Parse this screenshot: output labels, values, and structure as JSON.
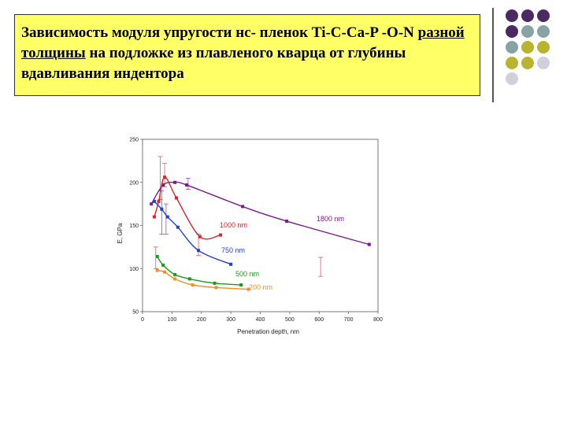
{
  "slide": {
    "title_part1": "Зависимость модуля упругости нс- пленок Ti-C-Ca-P -O-N ",
    "title_underlined": "разной толщины",
    "title_part2": " на подложке из плавленого кварца от глубины вдавливания индентора"
  },
  "decor_dots": [
    {
      "color": "#4b2a63"
    },
    {
      "color": "#4b2a63"
    },
    {
      "color": "#4b2a63"
    },
    {
      "color": "#4b2a63"
    },
    {
      "color": "#87a3a6"
    },
    {
      "color": "#87a3a6"
    },
    {
      "color": "#87a3a6"
    },
    {
      "color": "#b9b42e"
    },
    {
      "color": "#b9b42e"
    },
    {
      "color": "#b9b42e"
    },
    {
      "color": "#b9b42e"
    },
    {
      "color": "#cfd0dc"
    },
    {
      "color": "#cfd0dc"
    }
  ],
  "chart_data": {
    "type": "line",
    "xlabel": "Penetration depth, nm",
    "ylabel": "E, GPa",
    "xlim": [
      0,
      800
    ],
    "ylim": [
      50,
      250
    ],
    "xticks": [
      0,
      100,
      200,
      300,
      400,
      500,
      600,
      700,
      800
    ],
    "yticks": [
      50,
      100,
      150,
      200,
      250
    ],
    "grid": false,
    "series": [
      {
        "name": "1800 nm",
        "color": "#7a1a8c",
        "x": [
          30,
          70,
          110,
          150,
          340,
          490,
          770
        ],
        "y": [
          175,
          197,
          200,
          197,
          172,
          155,
          128
        ]
      },
      {
        "name": "1000 nm",
        "color": "#e0202a",
        "x": [
          40,
          55,
          75,
          115,
          195,
          265
        ],
        "y": [
          160,
          178,
          206,
          182,
          137,
          139
        ]
      },
      {
        "name": "750 nm",
        "color": "#2040d0",
        "x": [
          40,
          65,
          85,
          120,
          190,
          300
        ],
        "y": [
          178,
          169,
          160,
          148,
          121,
          105
        ]
      },
      {
        "name": "500 nm",
        "color": "#1a9a1a",
        "x": [
          50,
          70,
          110,
          160,
          245,
          335
        ],
        "y": [
          114,
          104,
          93,
          88,
          83,
          81
        ]
      },
      {
        "name": "200 nm",
        "color": "#f09020",
        "x": [
          50,
          75,
          110,
          170,
          250,
          360
        ],
        "y": [
          98,
          96,
          88,
          81,
          78,
          76
        ]
      }
    ],
    "error_bars": [
      {
        "x": 60,
        "low": 180,
        "high": 230,
        "color": "#e0202a"
      },
      {
        "x": 75,
        "low": 195,
        "high": 222,
        "color": "#e0202a"
      },
      {
        "x": 190,
        "low": 115,
        "high": 140,
        "color": "#e0202a"
      },
      {
        "x": 605,
        "low": 91,
        "high": 113,
        "color": "#e0202a"
      },
      {
        "x": 45,
        "low": 100,
        "high": 125,
        "color": "#e0202a"
      },
      {
        "x": 155,
        "low": 192,
        "high": 205,
        "color": "#7a1a8c"
      },
      {
        "x": 80,
        "low": 140,
        "high": 175,
        "color": "#7a1a8c"
      },
      {
        "x": 65,
        "low": 140,
        "high": 190,
        "color": "#7a1a8c"
      }
    ]
  }
}
